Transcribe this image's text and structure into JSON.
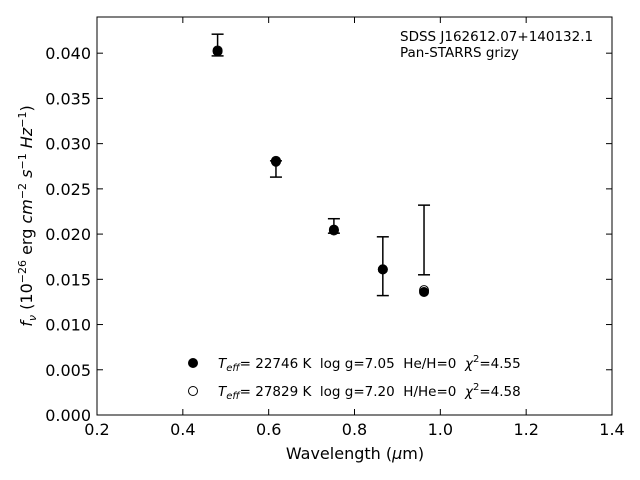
{
  "chart_data": {
    "type": "scatter",
    "title": "",
    "xlabel": "Wavelength (μm)",
    "ylabel": "fν (10⁻²⁶ erg cm⁻² s⁻¹ Hz⁻¹)",
    "xlim": [
      0.2,
      1.4
    ],
    "ylim": [
      0.0,
      0.044
    ],
    "x_ticks": [
      "0.2",
      "0.4",
      "0.6",
      "0.8",
      "1.0",
      "1.2",
      "1.4"
    ],
    "y_ticks": [
      "0.000",
      "0.005",
      "0.010",
      "0.015",
      "0.020",
      "0.025",
      "0.030",
      "0.035",
      "0.040"
    ],
    "grid": false,
    "annotation": [
      "SDSS J162612.07+140132.1",
      "Pan-STARRS grizy"
    ],
    "observed": {
      "x": [
        0.481,
        0.617,
        0.752,
        0.866,
        0.962
      ],
      "y_low": [
        0.0397,
        0.0263,
        0.0201,
        0.0132,
        0.0155
      ],
      "y_high": [
        0.0421,
        0.0281,
        0.0217,
        0.0197,
        0.0232
      ]
    },
    "series": [
      {
        "name": "T_eff= 22746 K  log g=7.05  He/H=0  χ²=4.55",
        "marker": "filled",
        "x": [
          0.481,
          0.617,
          0.752,
          0.866,
          0.962
        ],
        "y": [
          0.0402,
          0.028,
          0.0205,
          0.0161,
          0.0136
        ]
      },
      {
        "name": "T_eff= 27829 K  log g=7.20  H/He=0  χ²=4.58",
        "marker": "open",
        "x": [
          0.481,
          0.617,
          0.752,
          0.866,
          0.962
        ],
        "y": [
          0.0403,
          0.0281,
          0.0204,
          0.0161,
          0.0138
        ]
      }
    ],
    "legend": {
      "position": "lower-center",
      "items": [
        {
          "teff_label": "T",
          "teff_sub": "eff",
          "teff_rest": "= 22746 K  log g=7.05  He/H=0  ",
          "chi_sym": "χ",
          "chi_sup": "2",
          "chi_rest": "=4.55"
        },
        {
          "teff_label": "T",
          "teff_sub": "eff",
          "teff_rest": "= 27829 K  log g=7.20  H/He=0  ",
          "chi_sym": "χ",
          "chi_sup": "2",
          "chi_rest": "=4.58"
        }
      ]
    }
  }
}
